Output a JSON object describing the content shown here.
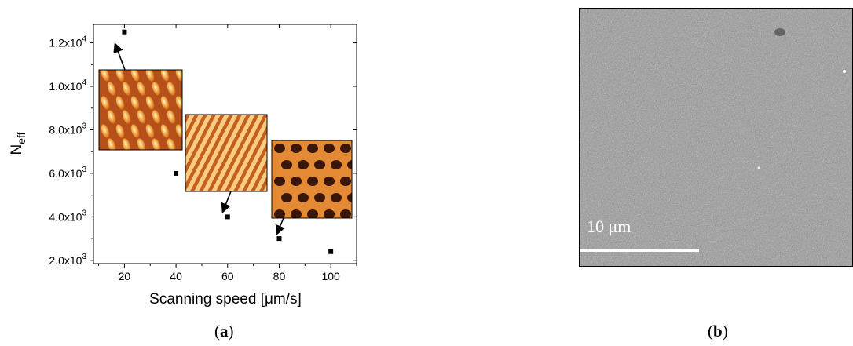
{
  "chart_data": {
    "type": "scatter",
    "xlabel": "Scanning speed [μm/s]",
    "ylabel_main": "N",
    "ylabel_sub": "eff",
    "xlim": [
      8,
      110
    ],
    "ylim": [
      1850,
      12850
    ],
    "x_ticks": [
      20,
      40,
      60,
      80,
      100
    ],
    "x_tick_labels": [
      "20",
      "40",
      "60",
      "80",
      "100"
    ],
    "y_ticks": [
      {
        "value": 2000,
        "mantissa": "2.0x10",
        "exp": "3"
      },
      {
        "value": 4000,
        "mantissa": "4.0x10",
        "exp": "3"
      },
      {
        "value": 6000,
        "mantissa": "6.0x10",
        "exp": "3"
      },
      {
        "value": 8000,
        "mantissa": "8.0x10",
        "exp": "3"
      },
      {
        "value": 10000,
        "mantissa": "1.0x10",
        "exp": "4"
      },
      {
        "value": 12000,
        "mantissa": "1.2x10",
        "exp": "4"
      }
    ],
    "points": [
      {
        "x": 20,
        "y": 12500
      },
      {
        "x": 40,
        "y": 6000
      },
      {
        "x": 60,
        "y": 4000
      },
      {
        "x": 80,
        "y": 3000
      },
      {
        "x": 100,
        "y": 2400
      }
    ],
    "grid": false,
    "marker": "square",
    "marker_color": "#000000"
  },
  "insets": [
    {
      "label": "AFM-topography-20",
      "pattern": "blobs",
      "points_to": {
        "x": 20,
        "y": 12500
      }
    },
    {
      "label": "AFM-topography-60",
      "pattern": "stripes",
      "points_to": {
        "x": 60,
        "y": 4000
      }
    },
    {
      "label": "AFM-topography-80",
      "pattern": "network",
      "points_to": {
        "x": 80,
        "y": 3000
      }
    }
  ],
  "panel_labels": {
    "a": {
      "open": "(",
      "letter": "a",
      "close": ")"
    },
    "b": {
      "open": "(",
      "letter": "b",
      "close": ")"
    }
  },
  "sem_image": {
    "scale_text": "10 μm",
    "background": "#8a8a8a"
  }
}
